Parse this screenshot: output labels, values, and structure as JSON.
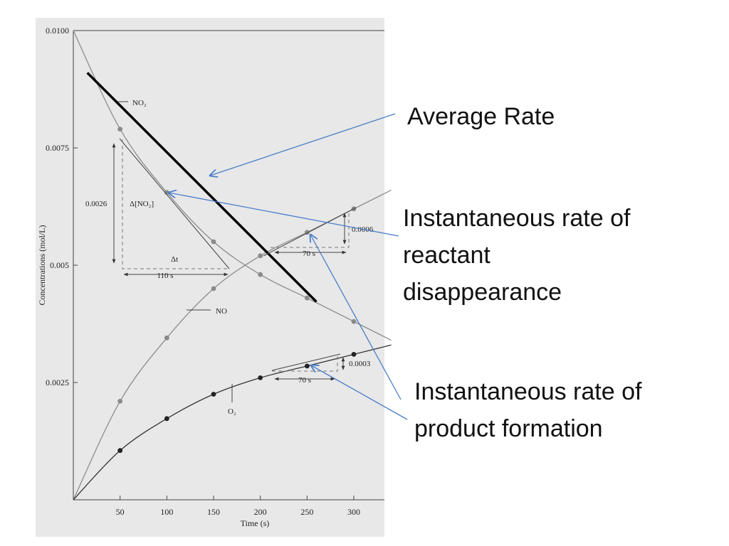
{
  "chart_data": {
    "type": "line",
    "xlabel": "Time (s)",
    "ylabel": "Concentrations (mol/L)",
    "xlim": [
      0,
      330
    ],
    "ylim": [
      0,
      0.01
    ],
    "x_ticks": [
      50,
      100,
      150,
      200,
      250,
      300
    ],
    "x_tick_labels": [
      "50",
      "100",
      "150",
      "200",
      "250",
      "300"
    ],
    "y_ticks": [
      0.0025,
      0.005,
      0.0075,
      0.01
    ],
    "y_tick_labels": [
      "0.0025",
      "0.005",
      "0.0075",
      "0.0100"
    ],
    "series": [
      {
        "name": "NO₂",
        "x": [
          0,
          50,
          100,
          150,
          200,
          250,
          300
        ],
        "y": [
          0.01,
          0.0079,
          0.00655,
          0.0055,
          0.0048,
          0.0043,
          0.0038
        ]
      },
      {
        "name": "NO",
        "x": [
          0,
          50,
          100,
          150,
          200,
          250,
          300
        ],
        "y": [
          0.0,
          0.0021,
          0.00345,
          0.0045,
          0.0052,
          0.0057,
          0.0062
        ]
      },
      {
        "name": "O₂",
        "x": [
          0,
          50,
          100,
          150,
          200,
          250,
          300
        ],
        "y": [
          0.0,
          0.00105,
          0.00173,
          0.00225,
          0.0026,
          0.00285,
          0.0031
        ]
      }
    ],
    "average_rate_line": {
      "x": [
        15,
        260
      ],
      "y": [
        0.0091,
        0.00422
      ]
    },
    "annotations": {
      "no2_delta_value": "0.0026",
      "no2_delta_label": "Δ[NO₂]",
      "no2_dt_label": "Δt",
      "no2_dt_value": "110 s",
      "no_delta_value": "0.0006",
      "no_dt_value": "70 s",
      "o2_delta_value": "0.0003",
      "o2_dt_value": "70 s"
    }
  },
  "callouts": {
    "average_rate": "Average Rate",
    "reactant_line1": "Instantaneous rate of",
    "reactant_line2": "reactant",
    "reactant_line3": "disappearance",
    "product_line1": "Instantaneous rate of",
    "product_line2": "product formation"
  },
  "colors": {
    "callout_arrow": "#4a7ec9",
    "scan_background": "#e8e8e8"
  }
}
